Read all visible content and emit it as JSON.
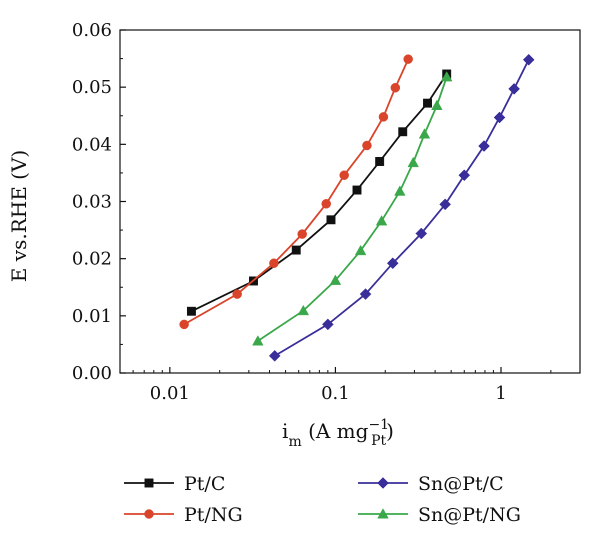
{
  "chart_data": {
    "type": "line",
    "xlabel": {
      "main": "i",
      "sub_m": "m",
      "unit_open": " (A mg",
      "sup": "−1",
      "sub": "Pt",
      "unit_close": ")"
    },
    "ylabel": "E vs.RHE (V)",
    "xscale": "log",
    "xlim": [
      0.005,
      3
    ],
    "ylim": [
      0,
      0.06
    ],
    "x_tick_labels": [
      "0.01",
      "0.1",
      "1"
    ],
    "y_tick_labels": [
      "0.00",
      "0.01",
      "0.02",
      "0.03",
      "0.04",
      "0.05",
      "0.06"
    ],
    "legend_placement": "bottom",
    "series": [
      {
        "name": "Pt/C",
        "color": "#111111",
        "marker": "square",
        "x": [
          0.0135,
          0.032,
          0.058,
          0.094,
          0.135,
          0.185,
          0.255,
          0.36,
          0.47
        ],
        "y": [
          0.0108,
          0.0161,
          0.0215,
          0.0268,
          0.032,
          0.037,
          0.0422,
          0.0472,
          0.0523
        ]
      },
      {
        "name": "Pt/NG",
        "color": "#d9442a",
        "marker": "circle",
        "x": [
          0.0122,
          0.0255,
          0.0425,
          0.063,
          0.088,
          0.113,
          0.155,
          0.195,
          0.23,
          0.275
        ],
        "y": [
          0.0085,
          0.0138,
          0.0192,
          0.0243,
          0.0296,
          0.0346,
          0.0398,
          0.0448,
          0.0499,
          0.0549
        ]
      },
      {
        "name": "Sn@Pt/C",
        "color": "#3a2f9a",
        "marker": "diamond",
        "x": [
          0.043,
          0.09,
          0.152,
          0.222,
          0.33,
          0.46,
          0.6,
          0.79,
          0.98,
          1.2,
          1.47
        ],
        "y": [
          0.003,
          0.0085,
          0.0138,
          0.0192,
          0.0244,
          0.0295,
          0.0346,
          0.0397,
          0.0447,
          0.0497,
          0.0548
        ]
      },
      {
        "name": "Sn@Pt/NG",
        "color": "#3aa84a",
        "marker": "triangle",
        "x": [
          0.034,
          0.064,
          0.1,
          0.142,
          0.19,
          0.245,
          0.295,
          0.345,
          0.41,
          0.47
        ],
        "y": [
          0.0056,
          0.0109,
          0.0162,
          0.0214,
          0.0266,
          0.0318,
          0.0368,
          0.0418,
          0.0468,
          0.0518
        ]
      }
    ]
  }
}
